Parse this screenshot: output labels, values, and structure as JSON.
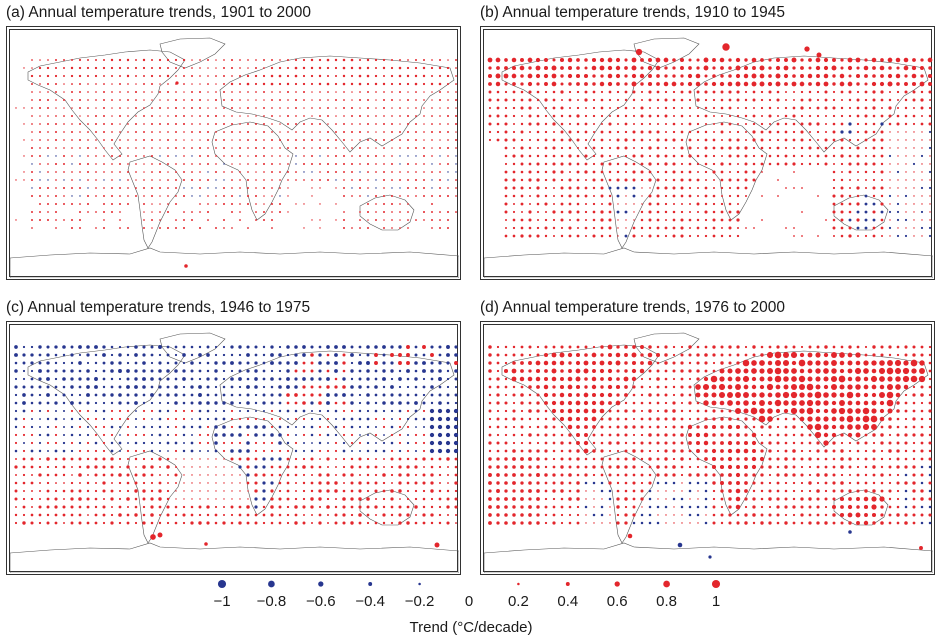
{
  "panels": [
    {
      "title": "(a) Annual temperature trends, 1901 to 2000",
      "pattern": "weak_warm",
      "extras": [
        [
          176,
          236,
          0.35
        ],
        [
          167,
          53,
          0.3
        ]
      ]
    },
    {
      "title": "(b) Annual temperature trends, 1910 to 1945",
      "pattern": "mid_warm",
      "extras": [
        [
          242,
          17,
          0.9
        ],
        [
          155,
          22,
          0.75
        ],
        [
          323,
          19,
          0.6
        ],
        [
          335,
          25,
          0.55
        ]
      ]
    },
    {
      "title": "(c) Annual temperature trends, 1946 to 1975",
      "pattern": "cool_north",
      "extras": [
        [
          143,
          212,
          0.65
        ],
        [
          150,
          210,
          0.55
        ],
        [
          427,
          220,
          0.55
        ],
        [
          196,
          219,
          0.35
        ]
      ]
    },
    {
      "title": "(d) Annual temperature trends, 1976 to 2000",
      "pattern": "strong_warm",
      "extras": [
        [
          146,
          211,
          0.5
        ],
        [
          196,
          220,
          -0.5
        ],
        [
          226,
          232,
          -0.3
        ],
        [
          437,
          223,
          0.4
        ],
        [
          366,
          207,
          -0.35
        ]
      ]
    }
  ],
  "legend": {
    "ticks": [
      "−1",
      "−0.8",
      "−0.6",
      "−0.4",
      "−0.2",
      "0",
      "0.2",
      "0.4",
      "0.6",
      "0.8",
      "1"
    ],
    "values": [
      -1,
      -0.8,
      -0.6,
      -0.4,
      -0.2,
      0,
      0.2,
      0.4,
      0.6,
      0.8,
      1
    ],
    "label": "Trend (°C/decade)"
  },
  "colors": {
    "warm": "#e3262c",
    "cool": "#27368f",
    "coast": "#555555"
  }
}
